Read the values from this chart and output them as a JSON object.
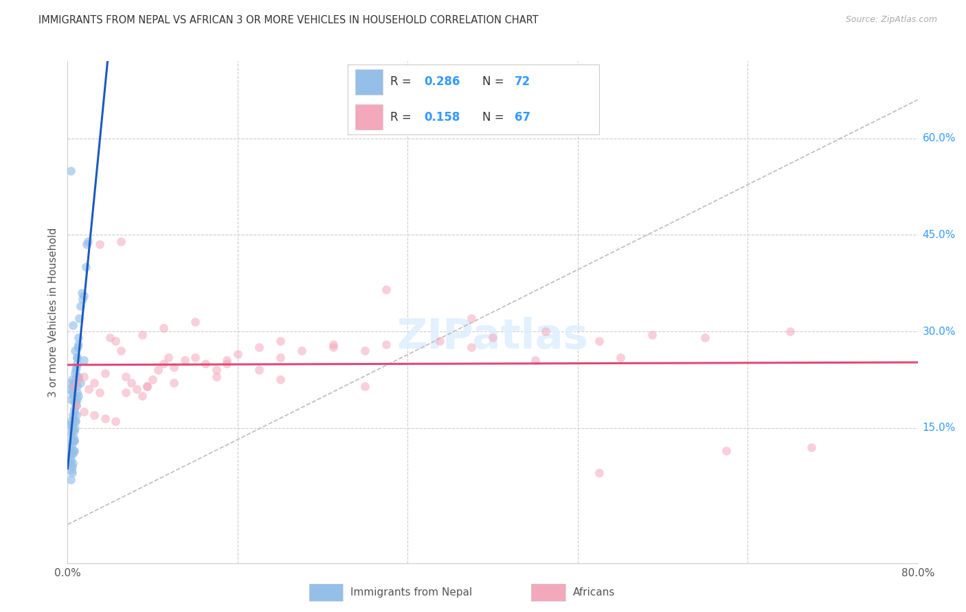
{
  "title": "IMMIGRANTS FROM NEPAL VS AFRICAN 3 OR MORE VEHICLES IN HOUSEHOLD CORRELATION CHART",
  "source": "Source: ZipAtlas.com",
  "ylabel_left": "3 or more Vehicles in Household",
  "legend_label1": "Immigrants from Nepal",
  "legend_label2": "Africans",
  "R1": 0.286,
  "N1": 72,
  "R2": 0.158,
  "N2": 67,
  "xlim": [
    0.0,
    80.0
  ],
  "ylim": [
    -6.0,
    72.0
  ],
  "yticks_right": [
    60.0,
    45.0,
    30.0,
    15.0
  ],
  "background_color": "#ffffff",
  "blue_color": "#94bfe8",
  "pink_color": "#f4a8bc",
  "blue_line_color": "#1a5abf",
  "pink_line_color": "#e04878",
  "nepal_x": [
    0.25,
    0.3,
    0.35,
    0.4,
    0.45,
    0.5,
    0.55,
    0.6,
    0.65,
    0.7,
    0.75,
    0.8,
    0.85,
    0.9,
    0.95,
    1.0,
    1.1,
    1.2,
    1.3,
    1.4,
    1.5,
    1.7,
    1.9,
    0.2,
    0.3,
    0.4,
    0.5,
    0.6,
    0.7,
    0.8,
    0.9,
    1.0,
    0.35,
    0.45,
    0.55,
    0.65,
    0.75,
    0.85,
    0.25,
    0.35,
    0.45,
    0.55,
    0.65,
    0.75,
    0.25,
    0.35,
    0.45,
    0.55,
    0.65,
    0.25,
    0.3,
    0.35,
    0.4,
    0.5,
    0.6,
    0.7,
    0.8,
    0.9,
    1.0,
    1.2,
    1.5,
    1.8,
    0.3,
    0.4,
    0.5,
    0.6,
    0.7,
    0.8,
    0.9,
    1.0,
    0.3,
    0.5
  ],
  "nepal_y": [
    21.0,
    19.5,
    22.0,
    20.5,
    22.5,
    21.5,
    20.0,
    19.0,
    22.0,
    27.0,
    24.0,
    23.0,
    25.0,
    26.0,
    27.5,
    28.0,
    32.0,
    34.0,
    36.0,
    35.0,
    35.5,
    40.0,
    44.0,
    15.5,
    16.0,
    14.5,
    17.0,
    18.0,
    23.5,
    24.5,
    26.0,
    29.0,
    13.0,
    15.0,
    16.5,
    17.5,
    19.0,
    20.5,
    12.0,
    14.0,
    15.5,
    13.5,
    14.5,
    16.0,
    10.5,
    11.0,
    12.5,
    11.5,
    13.0,
    9.5,
    10.0,
    8.5,
    9.0,
    11.0,
    13.0,
    15.0,
    17.0,
    19.5,
    20.0,
    22.0,
    25.5,
    43.5,
    7.0,
    8.0,
    9.5,
    11.5,
    16.0,
    18.5,
    21.5,
    23.0,
    55.0,
    31.0
  ],
  "african_x": [
    0.6,
    1.0,
    1.5,
    2.0,
    2.5,
    3.0,
    3.5,
    4.0,
    4.5,
    5.0,
    5.5,
    6.0,
    6.5,
    7.0,
    7.5,
    8.0,
    8.5,
    9.0,
    9.5,
    10.0,
    11.0,
    12.0,
    13.0,
    14.0,
    15.0,
    16.0,
    18.0,
    20.0,
    22.0,
    25.0,
    28.0,
    30.0,
    35.0,
    40.0,
    45.0,
    50.0,
    55.0,
    60.0,
    68.0,
    3.0,
    5.0,
    7.0,
    9.0,
    12.0,
    15.0,
    18.0,
    20.0,
    25.0,
    0.8,
    1.5,
    2.5,
    3.5,
    4.5,
    5.5,
    7.5,
    10.0,
    14.0,
    20.0,
    28.0,
    38.0,
    44.0,
    52.0,
    62.0,
    70.0,
    30.0,
    38.0,
    50.0
  ],
  "african_y": [
    21.5,
    22.5,
    23.0,
    21.0,
    22.0,
    20.5,
    23.5,
    29.0,
    28.5,
    27.0,
    23.0,
    22.0,
    21.0,
    20.0,
    21.5,
    22.5,
    24.0,
    25.0,
    26.0,
    24.5,
    25.5,
    26.0,
    25.0,
    24.0,
    25.5,
    26.5,
    27.5,
    26.0,
    27.0,
    28.0,
    27.0,
    28.0,
    28.5,
    29.0,
    30.0,
    28.5,
    29.5,
    29.0,
    30.0,
    43.5,
    44.0,
    29.5,
    30.5,
    31.5,
    25.0,
    24.0,
    28.5,
    27.5,
    18.5,
    17.5,
    17.0,
    16.5,
    16.0,
    20.5,
    21.5,
    22.0,
    23.0,
    22.5,
    21.5,
    32.0,
    25.5,
    26.0,
    11.5,
    12.0,
    36.5,
    27.5,
    8.0
  ]
}
